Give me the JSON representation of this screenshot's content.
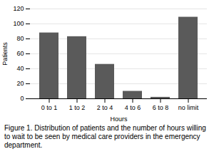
{
  "chart_data": {
    "type": "bar",
    "caption": "Figure 1. Distribution of patients and the number of hours willing to wait to be seen by medical care providers in the emergency department.",
    "categories": [
      "0 to 1",
      "1 to 2",
      "2 to 4",
      "4 to 6",
      "6 to 8",
      "no limit"
    ],
    "values": [
      88,
      83,
      46,
      10,
      2,
      109
    ],
    "color": "#5a5a5a",
    "xlabel": "Hours",
    "ylabel": "Patients",
    "ylim": [
      0,
      120
    ],
    "yticks": [
      0,
      20,
      40,
      60,
      80,
      100,
      120
    ],
    "grid": true
  }
}
